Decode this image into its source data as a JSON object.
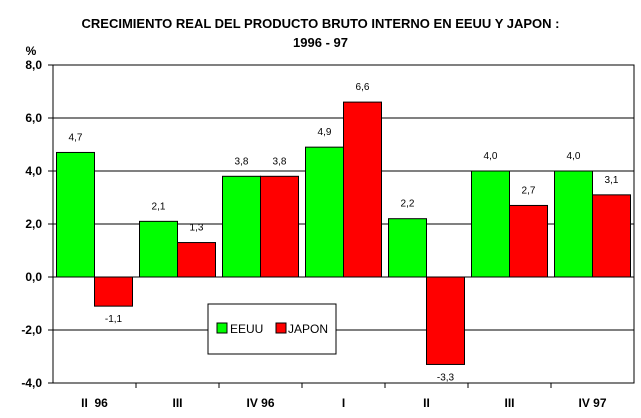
{
  "chart_data": {
    "type": "bar",
    "title": [
      "CRECIMIENTO REAL DEL PRODUCTO BRUTO INTERNO EN EEUU Y JAPON :",
      "1996 - 97"
    ],
    "ylabel": "%",
    "xlabel": "",
    "ylim": [
      -4.0,
      8.0
    ],
    "yticks": [
      8.0,
      6.0,
      4.0,
      2.0,
      0.0,
      -2.0,
      -4.0
    ],
    "ytick_labels": [
      "8,0",
      "6,0",
      "4,0",
      "2,0",
      "0,0",
      "-2,0",
      "-4,0"
    ],
    "grid": true,
    "legend_position": "lower-left",
    "categories": [
      "II  96",
      "III",
      "IV 96",
      "I",
      "II",
      "III",
      "IV 97"
    ],
    "series": [
      {
        "name": "EEUU",
        "color": "#00ff00",
        "values": [
          4.7,
          2.1,
          3.8,
          4.9,
          2.2,
          4.0,
          4.0
        ],
        "labels": [
          "4,7",
          "2,1",
          "3,8",
          "4,9",
          "2,2",
          "4,0",
          "4,0"
        ]
      },
      {
        "name": "JAPON",
        "color": "#ff0000",
        "values": [
          -1.1,
          1.3,
          3.8,
          6.6,
          -3.3,
          2.7,
          3.1
        ],
        "labels": [
          "-1,1",
          "1,3",
          "3,8",
          "6,6",
          "-3,3",
          "2,7",
          "3,1"
        ]
      }
    ]
  }
}
